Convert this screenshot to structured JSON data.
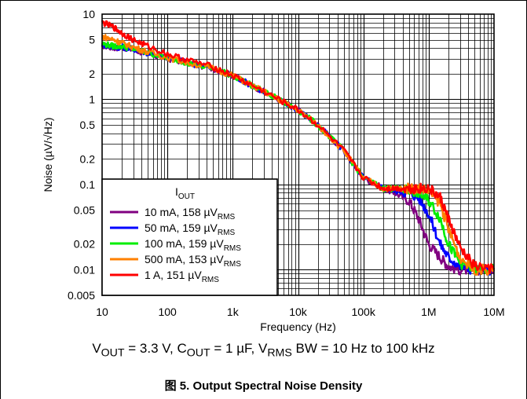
{
  "chart_data": {
    "type": "line",
    "xscale": "log",
    "yscale": "log",
    "xlim": [
      10,
      10000000
    ],
    "ylim": [
      0.005,
      10
    ],
    "xlabel": "Frequency (Hz)",
    "ylabel": "Noise (µV/√Hz)",
    "xticks": [
      10,
      100,
      1000,
      10000,
      100000,
      1000000,
      10000000
    ],
    "xtick_labels": [
      "10",
      "100",
      "1k",
      "10k",
      "100k",
      "1M",
      "10M"
    ],
    "yticks": [
      0.005,
      0.01,
      0.02,
      0.05,
      0.1,
      0.2,
      0.5,
      1,
      2,
      5,
      10
    ],
    "ytick_labels": [
      "0.005",
      "0.01",
      "0.02",
      "0.05",
      "0.1",
      "0.2",
      "0.5",
      "1",
      "2",
      "5",
      "10"
    ],
    "grid": true,
    "legend_position": "lower-left",
    "legend_title": "IOUT",
    "series": [
      {
        "name": "10 mA, 158 µVRMS",
        "color": "#800080",
        "x": [
          10,
          15,
          20,
          30,
          50,
          100,
          200,
          500,
          1000,
          2000,
          5000,
          10000,
          20000,
          50000,
          100000,
          200000,
          300000,
          500000,
          700000,
          1000000,
          1500000,
          2000000,
          3000000,
          5000000,
          10000000
        ],
        "y": [
          4.3,
          4.0,
          4.1,
          3.8,
          3.4,
          3.0,
          2.7,
          2.3,
          1.9,
          1.45,
          1.0,
          0.75,
          0.5,
          0.25,
          0.12,
          0.09,
          0.08,
          0.065,
          0.04,
          0.02,
          0.014,
          0.011,
          0.01,
          0.01,
          0.01
        ]
      },
      {
        "name": "50 mA, 159 µVRMS",
        "color": "#0000ff",
        "x": [
          10,
          15,
          20,
          30,
          50,
          100,
          200,
          500,
          1000,
          2000,
          5000,
          10000,
          20000,
          50000,
          100000,
          200000,
          300000,
          500000,
          700000,
          1000000,
          1500000,
          2000000,
          3000000,
          5000000,
          10000000
        ],
        "y": [
          4.4,
          4.1,
          4.1,
          3.9,
          3.5,
          3.1,
          2.7,
          2.3,
          1.9,
          1.45,
          1.0,
          0.75,
          0.5,
          0.25,
          0.12,
          0.09,
          0.085,
          0.08,
          0.07,
          0.045,
          0.02,
          0.014,
          0.011,
          0.01,
          0.01
        ]
      },
      {
        "name": "100 mA, 159 µVRMS",
        "color": "#00ee00",
        "x": [
          10,
          15,
          20,
          30,
          50,
          100,
          200,
          500,
          1000,
          2000,
          5000,
          10000,
          20000,
          50000,
          100000,
          200000,
          300000,
          500000,
          700000,
          1000000,
          1500000,
          2000000,
          3000000,
          5000000,
          10000000
        ],
        "y": [
          4.5,
          4.2,
          4.2,
          3.9,
          3.5,
          3.1,
          2.7,
          2.3,
          1.9,
          1.45,
          1.0,
          0.75,
          0.5,
          0.25,
          0.12,
          0.09,
          0.09,
          0.085,
          0.08,
          0.065,
          0.04,
          0.02,
          0.012,
          0.01,
          0.01
        ]
      },
      {
        "name": "500 mA, 153 µVRMS",
        "color": "#ff8000",
        "x": [
          10,
          15,
          20,
          30,
          50,
          100,
          200,
          500,
          1000,
          2000,
          5000,
          10000,
          20000,
          50000,
          100000,
          200000,
          300000,
          500000,
          700000,
          1000000,
          1500000,
          2000000,
          3000000,
          5000000,
          10000000
        ],
        "y": [
          5.5,
          5.0,
          4.6,
          4.1,
          3.6,
          3.1,
          2.7,
          2.3,
          1.9,
          1.45,
          1.0,
          0.75,
          0.5,
          0.25,
          0.12,
          0.09,
          0.09,
          0.09,
          0.09,
          0.085,
          0.06,
          0.03,
          0.014,
          0.01,
          0.01
        ]
      },
      {
        "name": "1 A, 151 µVRMS",
        "color": "#ff0000",
        "x": [
          10,
          15,
          20,
          30,
          50,
          100,
          200,
          500,
          1000,
          2000,
          5000,
          10000,
          20000,
          50000,
          100000,
          200000,
          300000,
          500000,
          700000,
          1000000,
          1500000,
          2000000,
          3000000,
          5000000,
          10000000
        ],
        "y": [
          8.0,
          7.0,
          6.0,
          5.0,
          4.2,
          3.4,
          2.9,
          2.4,
          1.9,
          1.45,
          1.0,
          0.75,
          0.5,
          0.25,
          0.12,
          0.09,
          0.09,
          0.09,
          0.09,
          0.09,
          0.07,
          0.04,
          0.018,
          0.011,
          0.01
        ]
      }
    ]
  },
  "conditions": "VOUT = 3.3 V, COUT = 1 µF, VRMS BW = 10 Hz to 100 kHz",
  "figure_caption": "图 5. Output Spectral Noise Density"
}
